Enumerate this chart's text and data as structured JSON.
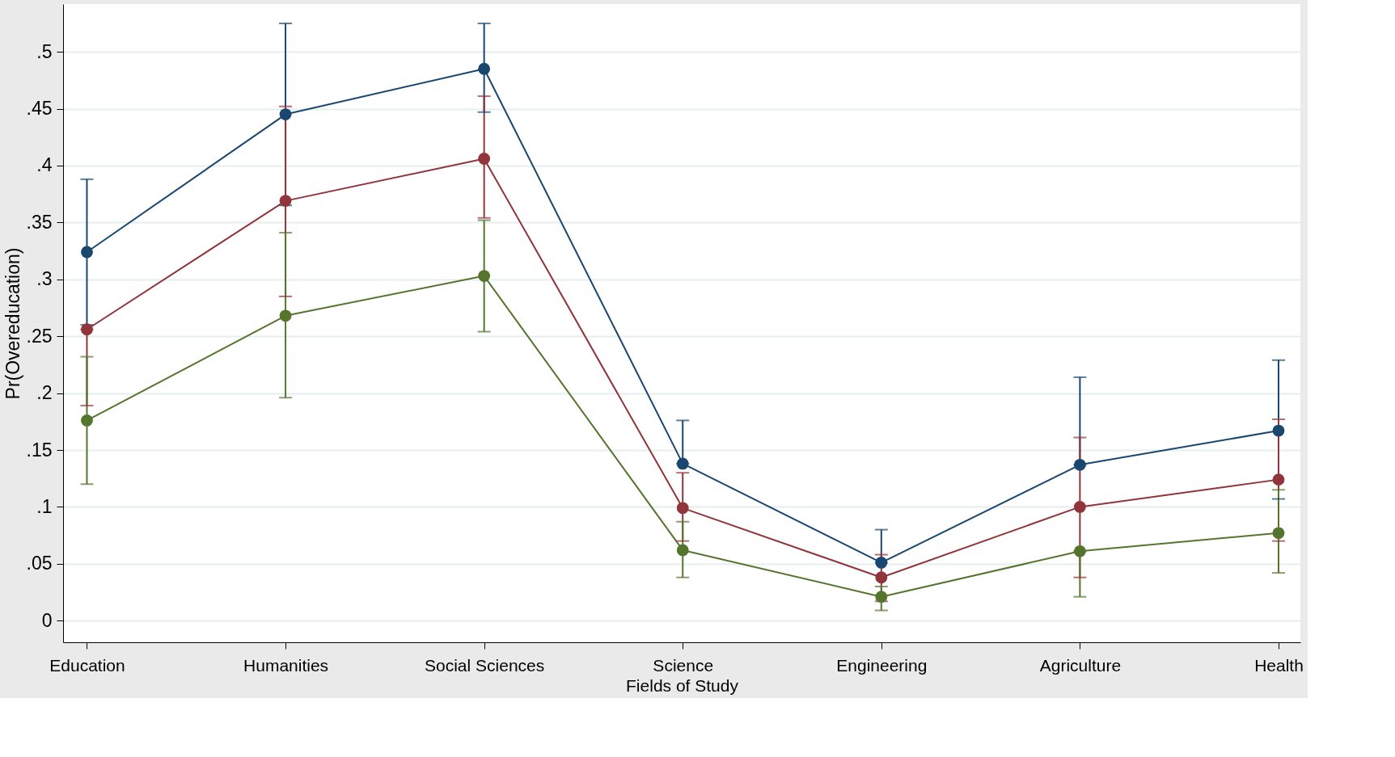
{
  "chart_data": {
    "type": "line",
    "xlabel": "Fields of Study",
    "ylabel": "Pr(Overeducation)",
    "categories": [
      "Education",
      "Humanities",
      "Social Sciences",
      "Science",
      "Engineering",
      "Agriculture",
      "Health"
    ],
    "series": [
      {
        "color": "#1a476f",
        "values": [
          0.324,
          0.445,
          0.485,
          0.138,
          0.051,
          0.137,
          0.167
        ],
        "errors": [
          [
            0.26,
            0.388
          ],
          [
            0.365,
            0.525
          ],
          [
            0.447,
            0.525
          ],
          [
            0.138,
            0.176
          ],
          [
            0.051,
            0.08
          ],
          [
            0.137,
            0.214
          ],
          [
            0.107,
            0.229
          ]
        ]
      },
      {
        "color": "#90353b",
        "values": [
          0.256,
          0.369,
          0.406,
          0.099,
          0.038,
          0.1,
          0.124
        ],
        "errors": [
          [
            0.189,
            0.256
          ],
          [
            0.285,
            0.452
          ],
          [
            0.354,
            0.461
          ],
          [
            0.07,
            0.13
          ],
          [
            0.017,
            0.058
          ],
          [
            0.038,
            0.161
          ],
          [
            0.07,
            0.177
          ]
        ]
      },
      {
        "color": "#55752f",
        "values": [
          0.176,
          0.268,
          0.303,
          0.062,
          0.021,
          0.061,
          0.077
        ],
        "errors": [
          [
            0.12,
            0.232
          ],
          [
            0.196,
            0.341
          ],
          [
            0.254,
            0.352
          ],
          [
            0.038,
            0.087
          ],
          [
            0.009,
            0.03
          ],
          [
            0.021,
            0.061
          ],
          [
            0.042,
            0.115
          ]
        ]
      }
    ],
    "ylim": [
      -0.019,
      0.542
    ],
    "yticks": [
      {
        "value": 0,
        "label": "0"
      },
      {
        "value": 0.05,
        "label": ".05"
      },
      {
        "value": 0.1,
        "label": ".1"
      },
      {
        "value": 0.15,
        "label": ".15"
      },
      {
        "value": 0.2,
        "label": ".2"
      },
      {
        "value": 0.25,
        "label": ".25"
      },
      {
        "value": 0.3,
        "label": ".3"
      },
      {
        "value": 0.35,
        "label": ".35"
      },
      {
        "value": 0.4,
        "label": ".4"
      },
      {
        "value": 0.45,
        "label": ".45"
      },
      {
        "value": 0.5,
        "label": ".5"
      }
    ],
    "grid": "y",
    "marker": "circle",
    "line_style": "solid",
    "legend": false
  }
}
